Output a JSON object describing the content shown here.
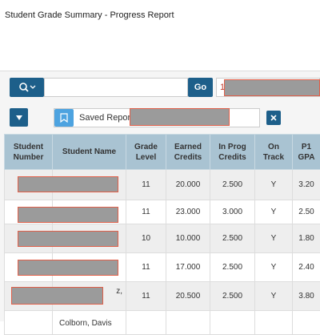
{
  "header": {
    "title": "Student Grade Summary - Progress Report"
  },
  "toolbar": {
    "go": "Go",
    "filter_value": "1",
    "saved_report_label": "Saved Report ="
  },
  "table": {
    "columns": [
      "Student Number",
      "Student Name",
      "Grade Level",
      "Earned Credits",
      "In Prog Credits",
      "On Track",
      "P1 GPA"
    ],
    "rows": [
      {
        "grade_level": "11",
        "earned_credits": "20.000",
        "in_prog_credits": "2.500",
        "on_track": "Y",
        "p1_gpa": "3.20"
      },
      {
        "grade_level": "11",
        "earned_credits": "23.000",
        "in_prog_credits": "3.000",
        "on_track": "Y",
        "p1_gpa": "2.50"
      },
      {
        "grade_level": "10",
        "earned_credits": "10.000",
        "in_prog_credits": "2.500",
        "on_track": "Y",
        "p1_gpa": "1.80"
      },
      {
        "grade_level": "11",
        "earned_credits": "17.000",
        "in_prog_credits": "2.500",
        "on_track": "Y",
        "p1_gpa": "2.40"
      },
      {
        "student_name": "z,",
        "grade_level": "11",
        "earned_credits": "20.500",
        "in_prog_credits": "2.500",
        "on_track": "Y",
        "p1_gpa": "3.80"
      },
      {
        "student_name": "Colborn, Davis"
      }
    ]
  }
}
